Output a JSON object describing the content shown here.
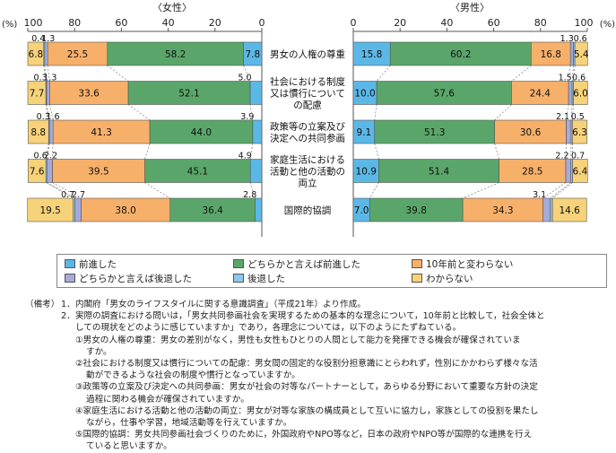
{
  "chart_data": {
    "type": "bar",
    "subtype": "diverging-stacked-horizontal",
    "panel_titles": {
      "female": "〈女性〉",
      "male": "〈男性〉"
    },
    "axis_unit_left": "(%)",
    "axis_unit_right": "(%)",
    "female_ticks": [
      "100",
      "80",
      "60",
      "40",
      "20",
      "0"
    ],
    "male_ticks": [
      "0",
      "20",
      "40",
      "60",
      "80",
      "100"
    ],
    "categories": [
      [
        "男女の人権の尊重"
      ],
      [
        "社会における制度",
        "又は慣行について",
        "の配慮"
      ],
      [
        "政策等の立案及び",
        "決定への共同参画"
      ],
      [
        "家庭生活における",
        "活動と他の活動の",
        "両立"
      ],
      [
        "国際的協調"
      ]
    ],
    "series_names": [
      "前進した",
      "どちらかと言えば前進した",
      "10年前と変わらない",
      "どちらかと言えば後退した",
      "後退した",
      "わからない"
    ],
    "colors": [
      "#5bb8e6",
      "#5aa66a",
      "#f6b06a",
      "#a7a9d8",
      "#8ac8ec",
      "#f6d27a"
    ],
    "female": [
      {
        "values": [
          7.8,
          58.2,
          25.5,
          1.3,
          0.4,
          6.8
        ],
        "labels": [
          "7.8",
          "58.2",
          "25.5",
          "1.3",
          "0.4",
          "6.8"
        ]
      },
      {
        "values": [
          5.0,
          52.1,
          33.6,
          1.3,
          0.3,
          7.7
        ],
        "labels": [
          "5.0",
          "52.1",
          "33.6",
          "1.3",
          "0.3",
          "7.7"
        ]
      },
      {
        "values": [
          3.9,
          44.0,
          41.3,
          1.6,
          0.3,
          8.8
        ],
        "labels": [
          "3.9",
          "44.0",
          "41.3",
          "1.6",
          "0.3",
          "8.8"
        ]
      },
      {
        "values": [
          4.9,
          45.1,
          39.5,
          2.2,
          0.6,
          7.6
        ],
        "labels": [
          "4.9",
          "45.1",
          "39.5",
          "2.2",
          "0.6",
          "7.6"
        ]
      },
      {
        "values": [
          2.8,
          36.4,
          38.0,
          2.7,
          0.7,
          19.5
        ],
        "labels": [
          "2.8",
          "36.4",
          "38.0",
          "2.7",
          "0.7",
          "19.5"
        ]
      }
    ],
    "male": [
      {
        "values": [
          15.8,
          60.2,
          16.8,
          1.3,
          0.6,
          5.4
        ],
        "labels": [
          "15.8",
          "60.2",
          "16.8",
          "1.3",
          "0.6",
          "5.4"
        ]
      },
      {
        "values": [
          10.0,
          57.6,
          24.4,
          1.5,
          0.6,
          6.0
        ],
        "labels": [
          "10.0",
          "57.6",
          "24.4",
          "1.5",
          "0.6",
          "6.0"
        ]
      },
      {
        "values": [
          9.1,
          51.3,
          30.6,
          2.1,
          0.5,
          6.3
        ],
        "labels": [
          "9.1",
          "51.3",
          "30.6",
          "2.1",
          "0.5",
          "6.3"
        ]
      },
      {
        "values": [
          10.9,
          51.4,
          28.5,
          2.2,
          0.7,
          6.4
        ],
        "labels": [
          "10.9",
          "51.4",
          "28.5",
          "2.2",
          "0.7",
          "6.4"
        ]
      },
      {
        "values": [
          7.0,
          39.8,
          34.3,
          3.1,
          0.9,
          14.6
        ],
        "labels": [
          "7.0",
          "39.8",
          "34.3",
          "3.1",
          "",
          "14.6"
        ]
      }
    ],
    "xlim": [
      0,
      100
    ]
  },
  "legend": [
    {
      "label": "前進した",
      "color": "#5bb8e6"
    },
    {
      "label": "どちらかと言えば前進した",
      "color": "#5aa66a"
    },
    {
      "label": "10年前と変わらない",
      "color": "#f6b06a"
    },
    {
      "label": "どちらかと言えば後退した",
      "color": "#a7a9d8"
    },
    {
      "label": "後退した",
      "color": "#8ac8ec"
    },
    {
      "label": "わからない",
      "color": "#f6d27a"
    }
  ],
  "notes": {
    "header": "（備考）",
    "n1": "1．",
    "line1": "内閣府「男女のライフスタイルに関する意識調査」（平成21年）より作成。",
    "n2": "2．",
    "line2a": "実際の調査における問いは，「男女共同参画社会を実現するための基本的な理念について，10年前と比較して，社会全体と",
    "line2b": "しての現状をどのように感じていますか」であり，各理念については，以下のようにたずねている。",
    "item1a": "①男女の人権の尊重：男女の差別がなく，男性も女性もひとりの人間として能力を発揮できる機会が確保されていま",
    "item1b": "すか。",
    "item2a": "②社会における制度又は慣行についての配慮：男女間の固定的な役割分担意識にとらわれず，性別にかかわらず様々な活",
    "item2b": "動ができるような社会の制度や慣行となっていますか。",
    "item3a": "③政策等の立案及び決定への共同参画：男女が社会の対等なパートナーとして，あらゆる分野において重要な方針の決定",
    "item3b": "過程に関わる機会が確保されていますか。",
    "item4a": "④家庭生活における活動と他の活動の両立：男女が対等な家族の構成員として互いに協力し，家族としての役割を果たし",
    "item4b": "ながら，仕事や学習，地域活動等を行えていますか。",
    "item5a": "⑤国際的協調：男女共同参画社会づくりのために，外国政府やNPO等など，日本の政府やNPO等が国際的な連携を行え",
    "item5b": "ていると思いますか。"
  }
}
